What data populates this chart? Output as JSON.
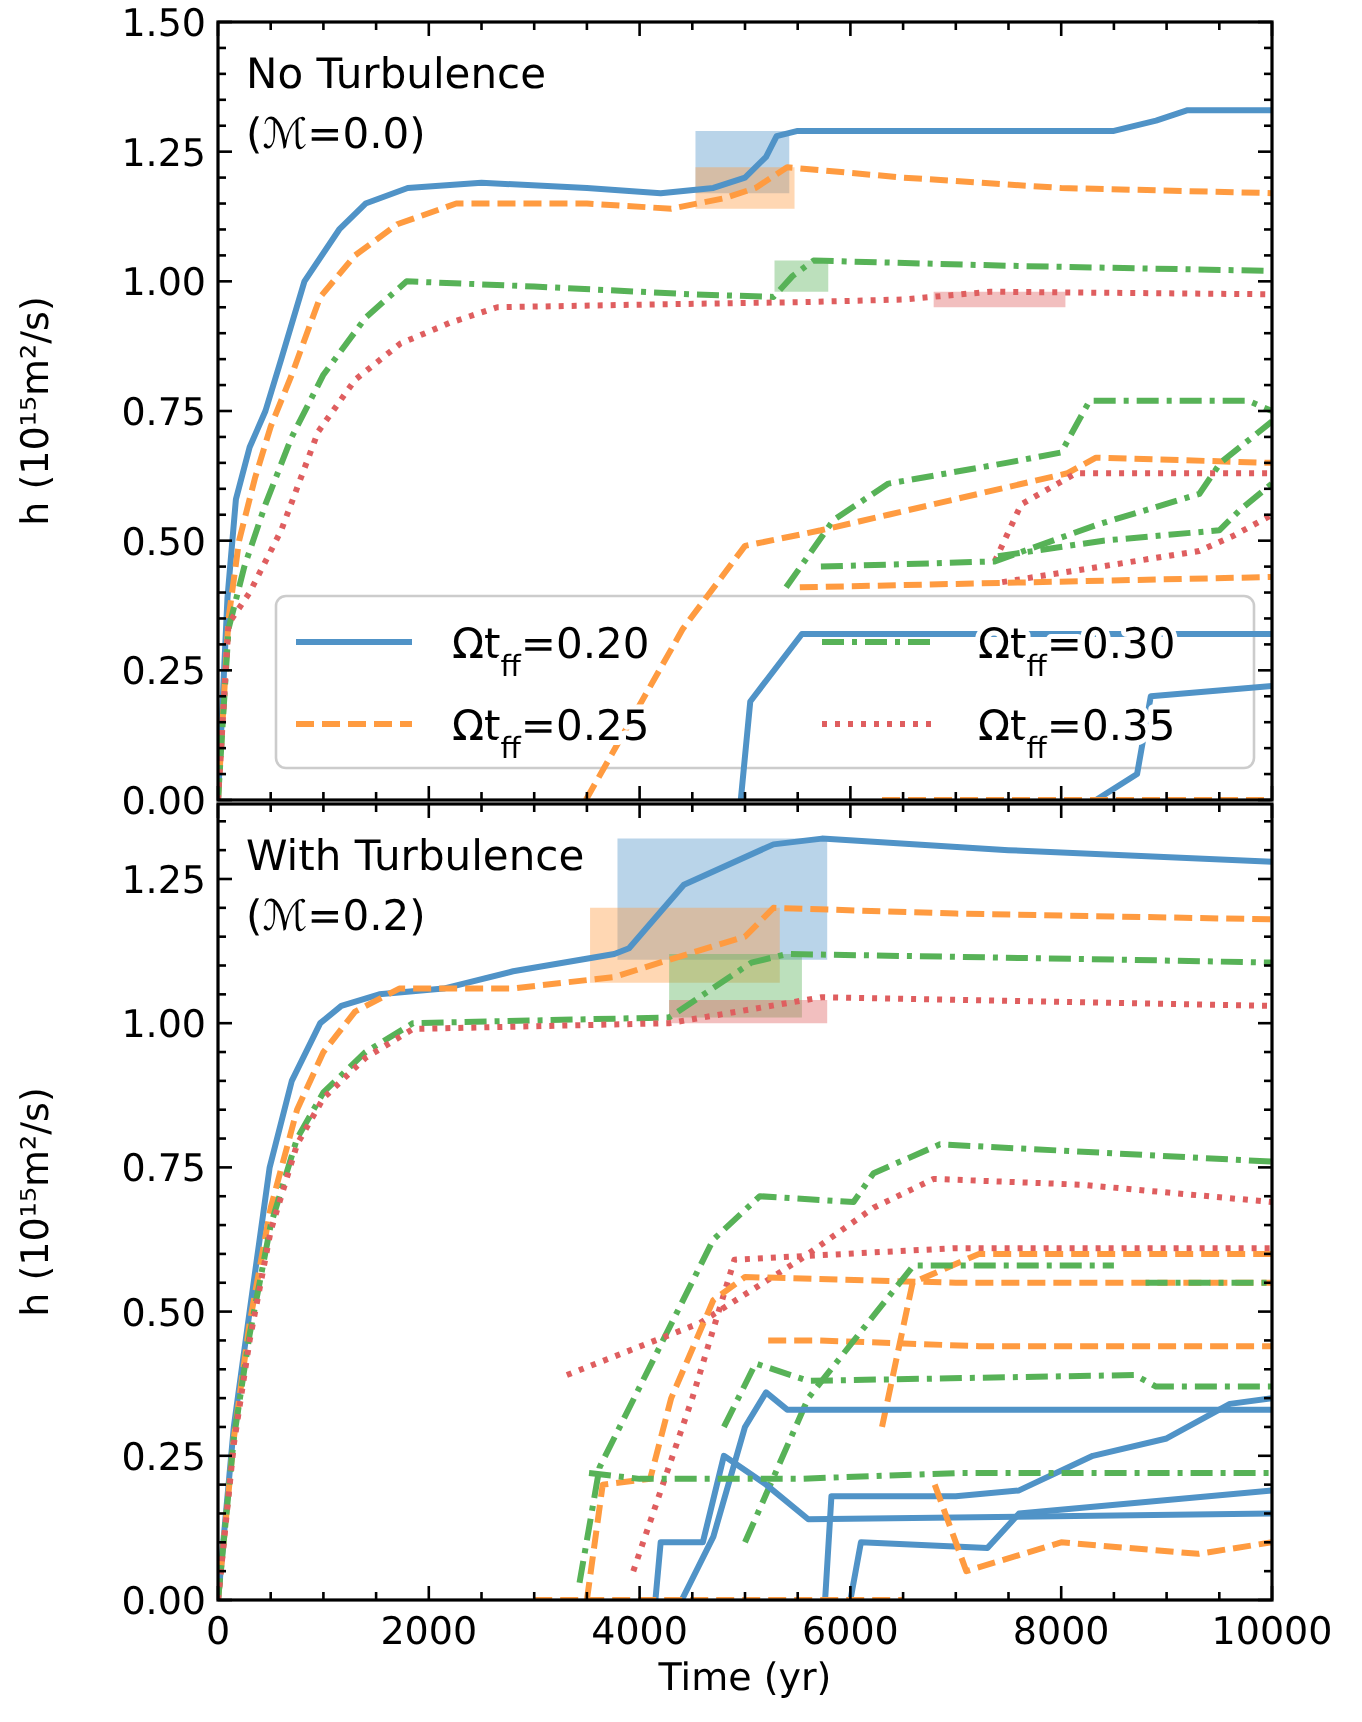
{
  "chart_data": [
    {
      "type": "line",
      "ylabel": "h (10¹⁵m²/s)",
      "annotations": [
        "No Turbulence",
        "(ℳ=0.0)"
      ],
      "xlim": [
        0,
        10000
      ],
      "ylim": [
        0,
        1.5
      ],
      "xticks": [
        0,
        {
          "value": 500,
          "label": null
        },
        2000,
        {
          "value": 1000,
          "label": null
        },
        {
          "value": 1500,
          "label": null
        },
        {
          "value": 2500,
          "label": null
        },
        {
          "value": 3000,
          "label": null
        },
        {
          "value": 3500,
          "label": null
        },
        4000,
        {
          "value": 4500,
          "label": null
        },
        {
          "value": 5000,
          "label": null
        },
        {
          "value": 5500,
          "label": null
        },
        6000,
        {
          "value": 6500,
          "label": null
        },
        {
          "value": 7000,
          "label": null
        },
        {
          "value": 7500,
          "label": null
        },
        8000,
        {
          "value": 8500,
          "label": null
        },
        {
          "value": 9000,
          "label": null
        },
        {
          "value": 9500,
          "label": null
        },
        10000
      ],
      "yticks": [
        {
          "value": 0,
          "label": "0.00"
        },
        {
          "value": 0.25,
          "label": "0.25"
        },
        {
          "value": 0.5,
          "label": "0.50"
        },
        {
          "value": 0.75,
          "label": "0.75"
        },
        {
          "value": 1,
          "label": "1.00"
        },
        {
          "value": 1.25,
          "label": "1.25"
        },
        {
          "value": 1.5,
          "label": "1.50"
        },
        {
          "value": 0.05,
          "label": null
        },
        {
          "value": 0.1,
          "label": null
        },
        {
          "value": 0.15,
          "label": null
        },
        {
          "value": 0.2,
          "label": null
        },
        {
          "value": 0.3,
          "label": null
        },
        {
          "value": 0.35,
          "label": null
        },
        {
          "value": 0.4,
          "label": null
        },
        {
          "value": 0.45,
          "label": null
        },
        {
          "value": 0.55,
          "label": null
        },
        {
          "value": 0.6,
          "label": null
        },
        {
          "value": 0.65,
          "label": null
        },
        {
          "value": 0.7,
          "label": null
        },
        {
          "value": 0.8,
          "label": null
        },
        {
          "value": 0.85,
          "label": null
        },
        {
          "value": 0.9,
          "label": null
        },
        {
          "value": 0.95,
          "label": null
        },
        {
          "value": 1.05,
          "label": null
        },
        {
          "value": 1.1,
          "label": null
        },
        {
          "value": 1.15,
          "label": null
        },
        {
          "value": 1.2,
          "label": null
        },
        {
          "value": 1.3,
          "label": null
        },
        {
          "value": 1.35,
          "label": null
        },
        {
          "value": 1.4,
          "label": null
        },
        {
          "value": 1.45,
          "label": null
        }
      ],
      "tick_labels": "y",
      "legend": "bottom",
      "grid": false,
      "series": [
        {
          "color": "#5093c7",
          "x": [
            4530,
            5420
          ],
          "lower": [
            1.17,
            1.17
          ],
          "upper": [
            1.29,
            1.29
          ],
          "values": [
            null,
            null
          ]
        },
        {
          "color": "#ff9b40",
          "x": [
            4530,
            5470
          ],
          "lower": [
            1.14,
            1.14
          ],
          "upper": [
            1.22,
            1.22
          ],
          "values": [
            null,
            null
          ]
        },
        {
          "color": "#57b257",
          "x": [
            5280,
            5790
          ],
          "lower": [
            0.98,
            0.98
          ],
          "upper": [
            1.04,
            1.04
          ],
          "values": [
            null,
            null
          ]
        },
        {
          "color": "#df5e5f",
          "x": [
            6790,
            8040
          ],
          "lower": [
            0.95,
            0.95
          ],
          "upper": [
            0.98,
            0.98
          ],
          "values": [
            null,
            null
          ]
        },
        {
          "name": "Ωt$_{ff}$=0.20",
          "color": "#5093c7",
          "line_style": "solid",
          "x": [
            0,
            90,
            170,
            300,
            450,
            600,
            820,
            1150,
            1400,
            1800,
            2500,
            3500,
            4200,
            4700,
            5000,
            5200,
            5300,
            5500,
            7000,
            8500,
            8900,
            9200,
            10000
          ],
          "values": [
            0,
            0.39,
            0.58,
            0.68,
            0.75,
            0.85,
            1.0,
            1.1,
            1.15,
            1.18,
            1.19,
            1.18,
            1.17,
            1.18,
            1.2,
            1.24,
            1.28,
            1.29,
            1.29,
            1.29,
            1.31,
            1.33,
            1.33
          ]
        },
        {
          "name": "Ωt$_{ff}$=0.25",
          "color": "#ff9b40",
          "line_style": "dashed",
          "x": [
            0,
            100,
            200,
            350,
            500,
            700,
            970,
            1300,
            1700,
            2260,
            3500,
            4300,
            4800,
            5100,
            5400,
            6500,
            8000,
            10000
          ],
          "values": [
            0,
            0.35,
            0.5,
            0.62,
            0.72,
            0.82,
            0.97,
            1.05,
            1.11,
            1.15,
            1.15,
            1.14,
            1.16,
            1.18,
            1.22,
            1.2,
            1.18,
            1.17
          ]
        },
        {
          "name": "Ωt$_{ff}$=0.30",
          "color": "#57b257",
          "line_style": "dashdot",
          "x": [
            0,
            100,
            250,
            450,
            700,
            1000,
            1400,
            1790,
            3000,
            4500,
            5270,
            5450,
            5650,
            7500,
            10000
          ],
          "values": [
            0,
            0.33,
            0.45,
            0.57,
            0.7,
            0.82,
            0.93,
            1.0,
            0.99,
            0.975,
            0.97,
            1.01,
            1.04,
            1.03,
            1.02
          ]
        },
        {
          "name": "Ωt$_{ff}$=0.35",
          "color": "#df5e5f",
          "line_style": "dotted",
          "x": [
            0,
            100,
            300,
            600,
            950,
            1300,
            1730,
            2200,
            2650,
            4000,
            5560,
            6500,
            7330,
            10000
          ],
          "values": [
            0,
            0.34,
            0.4,
            0.52,
            0.71,
            0.81,
            0.88,
            0.92,
            0.95,
            0.955,
            0.96,
            0.965,
            0.98,
            0.975
          ]
        },
        {
          "color": "#57b257",
          "line_style": "dashdot",
          "x": [
            5390,
            5840,
            6360,
            7480,
            8000,
            8270,
            9770,
            10000
          ],
          "values": [
            0.41,
            0.54,
            0.61,
            0.65,
            0.67,
            0.77,
            0.77,
            0.75
          ]
        },
        {
          "color": "#ff9b40",
          "line_style": "dashed",
          "x": [
            3490,
            4410,
            5000,
            5720,
            6360,
            8060,
            8330,
            10000
          ],
          "values": [
            0,
            0.33,
            0.49,
            0.52,
            0.55,
            0.63,
            0.66,
            0.65
          ]
        },
        {
          "color": "#df5e5f",
          "line_style": "dotted",
          "x": [
            7370,
            7620,
            8140,
            10000
          ],
          "values": [
            0.46,
            0.57,
            0.63,
            0.63
          ]
        },
        {
          "color": "#57b257",
          "line_style": "dashdot",
          "x": [
            5720,
            7370,
            8330,
            9310,
            9510,
            10000
          ],
          "values": [
            0.45,
            0.46,
            0.53,
            0.59,
            0.65,
            0.73
          ]
        },
        {
          "color": "#57b257",
          "line_style": "dashdot",
          "x": [
            7400,
            8400,
            9500,
            9700,
            10000
          ],
          "values": [
            0.47,
            0.5,
            0.52,
            0.56,
            0.61
          ]
        },
        {
          "color": "#df5e5f",
          "line_style": "dotted",
          "x": [
            7440,
            9310,
            9640,
            10000
          ],
          "values": [
            0.42,
            0.48,
            0.51,
            0.55
          ]
        },
        {
          "color": "#ff9b40",
          "line_style": "dashed",
          "x": [
            5520,
            10000
          ],
          "values": [
            0.41,
            0.43
          ]
        },
        {
          "color": "#5093c7",
          "line_style": "solid",
          "x": [
            8330,
            8720,
            8850,
            10000
          ],
          "values": [
            0,
            0.05,
            0.2,
            0.22
          ]
        },
        {
          "color": "#5093c7",
          "line_style": "solid",
          "x": [
            4960,
            5050,
            5540,
            10000
          ],
          "values": [
            0,
            0.19,
            0.32,
            0.32
          ]
        },
        {
          "color": "#ff9b40",
          "line_style": "dashed",
          "x": [
            6300,
            10000
          ],
          "values": [
            0,
            0
          ]
        }
      ]
    },
    {
      "type": "line",
      "ylabel": "h (10¹⁵m²/s)",
      "xlabel": "Time (yr)",
      "annotations": [
        "With Turbulence",
        "(ℳ=0.2)"
      ],
      "xlim": [
        0,
        10000
      ],
      "ylim": [
        0,
        1.38
      ],
      "xticks": [
        0,
        {
          "value": 500,
          "label": null
        },
        2000,
        {
          "value": 1000,
          "label": null
        },
        {
          "value": 1500,
          "label": null
        },
        {
          "value": 2500,
          "label": null
        },
        {
          "value": 3000,
          "label": null
        },
        {
          "value": 3500,
          "label": null
        },
        4000,
        {
          "value": 4500,
          "label": null
        },
        {
          "value": 5000,
          "label": null
        },
        {
          "value": 5500,
          "label": null
        },
        6000,
        {
          "value": 6500,
          "label": null
        },
        {
          "value": 7000,
          "label": null
        },
        {
          "value": 7500,
          "label": null
        },
        8000,
        {
          "value": 8500,
          "label": null
        },
        {
          "value": 9000,
          "label": null
        },
        {
          "value": 9500,
          "label": null
        },
        10000
      ],
      "yticks": [
        {
          "value": 0,
          "label": "0.00"
        },
        {
          "value": 0.25,
          "label": "0.25"
        },
        {
          "value": 0.5,
          "label": "0.50"
        },
        {
          "value": 0.75,
          "label": "0.75"
        },
        {
          "value": 1,
          "label": "1.00"
        },
        {
          "value": 1.25,
          "label": "1.25"
        },
        {
          "value": 0.05,
          "label": null
        },
        {
          "value": 0.1,
          "label": null
        },
        {
          "value": 0.15,
          "label": null
        },
        {
          "value": 0.2,
          "label": null
        },
        {
          "value": 0.3,
          "label": null
        },
        {
          "value": 0.35,
          "label": null
        },
        {
          "value": 0.4,
          "label": null
        },
        {
          "value": 0.45,
          "label": null
        },
        {
          "value": 0.55,
          "label": null
        },
        {
          "value": 0.6,
          "label": null
        },
        {
          "value": 0.65,
          "label": null
        },
        {
          "value": 0.7,
          "label": null
        },
        {
          "value": 0.8,
          "label": null
        },
        {
          "value": 0.85,
          "label": null
        },
        {
          "value": 0.9,
          "label": null
        },
        {
          "value": 0.95,
          "label": null
        },
        {
          "value": 1.05,
          "label": null
        },
        {
          "value": 1.1,
          "label": null
        },
        {
          "value": 1.15,
          "label": null
        },
        {
          "value": 1.2,
          "label": null
        },
        {
          "value": 1.3,
          "label": null
        },
        {
          "value": 1.35,
          "label": null
        }
      ],
      "grid": false,
      "series": [
        {
          "color": "#5093c7",
          "x": [
            3790,
            5780
          ],
          "lower": [
            1.11,
            1.11
          ],
          "upper": [
            1.32,
            1.32
          ],
          "values": [
            null,
            null
          ]
        },
        {
          "color": "#ff9b40",
          "x": [
            3530,
            5330
          ],
          "lower": [
            1.07,
            1.07
          ],
          "upper": [
            1.2,
            1.2
          ],
          "values": [
            null,
            null
          ]
        },
        {
          "color": "#57b257",
          "x": [
            4280,
            5540
          ],
          "lower": [
            1.01,
            1.01
          ],
          "upper": [
            1.12,
            1.12
          ],
          "values": [
            null,
            null
          ]
        },
        {
          "color": "#df5e5f",
          "x": [
            4280,
            5780
          ],
          "lower": [
            1.0,
            1.0
          ],
          "upper": [
            1.04,
            1.04
          ],
          "values": [
            null,
            null
          ]
        },
        {
          "color": "#5093c7",
          "line_style": "solid",
          "x": [
            0,
            150,
            300,
            490,
            700,
            970,
            1170,
            1530,
            2140,
            2800,
            3760,
            3900,
            4420,
            5270,
            5730,
            7500,
            10000
          ],
          "values": [
            0,
            0.3,
            0.5,
            0.75,
            0.9,
            1.0,
            1.03,
            1.05,
            1.06,
            1.09,
            1.12,
            1.13,
            1.24,
            1.31,
            1.32,
            1.3,
            1.28
          ]
        },
        {
          "color": "#ff9b40",
          "line_style": "dashed",
          "x": [
            0,
            150,
            300,
            500,
            750,
            1000,
            1300,
            1720,
            2780,
            3760,
            4280,
            5000,
            5270,
            7000,
            10000
          ],
          "values": [
            0,
            0.28,
            0.48,
            0.68,
            0.85,
            0.95,
            1.02,
            1.06,
            1.06,
            1.08,
            1.11,
            1.15,
            1.2,
            1.19,
            1.18
          ]
        },
        {
          "color": "#57b257",
          "line_style": "dashdot",
          "x": [
            0,
            150,
            300,
            500,
            750,
            1000,
            1400,
            1850,
            4280,
            5060,
            5400,
            8600,
            10000
          ],
          "values": [
            0,
            0.28,
            0.46,
            0.65,
            0.8,
            0.88,
            0.95,
            1.0,
            1.01,
            1.105,
            1.12,
            1.11,
            1.105
          ]
        },
        {
          "color": "#df5e5f",
          "line_style": "dotted",
          "x": [
            0,
            150,
            300,
            500,
            750,
            1000,
            1400,
            1850,
            4280,
            5730,
            10000
          ],
          "values": [
            0,
            0.27,
            0.45,
            0.64,
            0.79,
            0.87,
            0.94,
            0.99,
            1.0,
            1.045,
            1.03
          ]
        },
        {
          "color": "#57b257",
          "line_style": "dashdot",
          "x": [
            3430,
            3620,
            4700,
            5140,
            6030,
            6220,
            6850,
            10000
          ],
          "values": [
            0.03,
            0.23,
            0.625,
            0.7,
            0.69,
            0.74,
            0.79,
            0.76
          ]
        },
        {
          "color": "#df5e5f",
          "line_style": "dotted",
          "x": [
            3310,
            4570,
            5520,
            6220,
            6790,
            8190,
            10000
          ],
          "values": [
            0.39,
            0.48,
            0.59,
            0.68,
            0.73,
            0.72,
            0.69
          ]
        },
        {
          "color": "#df5e5f",
          "line_style": "dotted",
          "x": [
            3940,
            4500,
            4900,
            7000,
            10000
          ],
          "values": [
            0.05,
            0.35,
            0.59,
            0.61,
            0.61
          ]
        },
        {
          "color": "#ff9b40",
          "line_style": "dashed",
          "x": [
            3500,
            3650,
            4100,
            4300,
            4700,
            5000,
            7000,
            10000
          ],
          "values": [
            0,
            0.2,
            0.21,
            0.35,
            0.52,
            0.56,
            0.55,
            0.55
          ]
        },
        {
          "color": "#ff9b40",
          "line_style": "dashed",
          "x": [
            6300,
            6590,
            7220,
            10000
          ],
          "values": [
            0.3,
            0.55,
            0.6,
            0.6
          ]
        },
        {
          "color": "#ff9b40",
          "line_style": "dashed",
          "x": [
            5220,
            5700,
            7220,
            10000
          ],
          "values": [
            0.45,
            0.45,
            0.44,
            0.44
          ]
        },
        {
          "color": "#57b257",
          "line_style": "dashdot",
          "x": [
            5000,
            5600,
            6250,
            6600,
            8500
          ],
          "values": [
            0.1,
            0.35,
            0.5,
            0.58,
            0.58
          ]
        },
        {
          "color": "#57b257",
          "line_style": "dashdot",
          "x": [
            8800,
            10000
          ],
          "values": [
            0.55,
            0.55
          ]
        },
        {
          "color": "#57b257",
          "line_style": "dashdot",
          "x": [
            4800,
            5100,
            5600,
            8700,
            8900,
            10000
          ],
          "values": [
            0.3,
            0.41,
            0.38,
            0.39,
            0.37,
            0.37
          ]
        },
        {
          "color": "#5093c7",
          "line_style": "solid",
          "x": [
            4400,
            4700,
            5000,
            5200,
            5400,
            10000
          ],
          "values": [
            0,
            0.11,
            0.3,
            0.36,
            0.33,
            0.33
          ]
        },
        {
          "color": "#5093c7",
          "line_style": "solid",
          "x": [
            5760,
            5820,
            7000,
            7600,
            8300,
            9000,
            9600,
            10000
          ],
          "values": [
            0,
            0.18,
            0.18,
            0.19,
            0.25,
            0.28,
            0.34,
            0.35
          ]
        },
        {
          "color": "#5093c7",
          "line_style": "solid",
          "x": [
            4150,
            4200,
            4600,
            4800,
            5200,
            5600,
            10000
          ],
          "values": [
            0,
            0.1,
            0.1,
            0.25,
            0.2,
            0.14,
            0.15
          ]
        },
        {
          "color": "#5093c7",
          "line_style": "solid",
          "x": [
            6000,
            6100,
            7300,
            7600,
            10000
          ],
          "values": [
            0,
            0.1,
            0.09,
            0.15,
            0.19
          ]
        },
        {
          "color": "#ff9b40",
          "line_style": "dashed",
          "x": [
            6800,
            7100,
            8000,
            9300,
            10000
          ],
          "values": [
            0.2,
            0.05,
            0.1,
            0.08,
            0.1
          ]
        },
        {
          "color": "#ff9b40",
          "line_style": "dashed",
          "x": [
            3000,
            6500
          ],
          "values": [
            0,
            0
          ]
        },
        {
          "color": "#57b257",
          "line_style": "dashdot",
          "x": [
            3520,
            4000,
            5500,
            7000,
            10000
          ],
          "values": [
            0.22,
            0.21,
            0.21,
            0.22,
            0.22
          ]
        }
      ]
    }
  ]
}
